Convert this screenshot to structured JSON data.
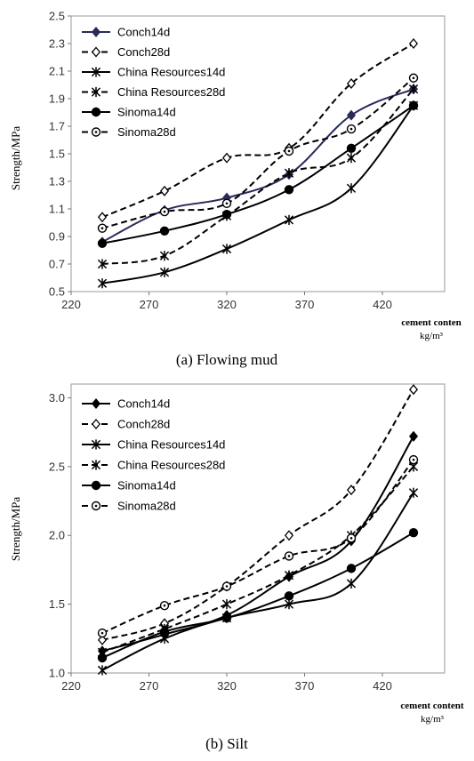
{
  "chart_data": [
    {
      "type": "line",
      "caption": "(a) Flowing mud",
      "ylabel": "Strength/MPa",
      "xlabel": "cement conten",
      "xunit": "kg/m³",
      "xlim": [
        220,
        460
      ],
      "ylim": [
        0.5,
        2.5
      ],
      "xticks": [
        220,
        270,
        320,
        370,
        420
      ],
      "yticks": [
        0.5,
        0.7,
        0.9,
        1.1,
        1.3,
        1.5,
        1.7,
        1.9,
        2.1,
        2.3,
        2.5
      ],
      "ytick_decimals": 1,
      "legend_position": "top-left",
      "x": [
        240,
        280,
        320,
        360,
        400,
        440
      ],
      "series": [
        {
          "name": "Conch14d",
          "dash": "solid",
          "marker": "diamond",
          "color": "#2a2a5a",
          "values": [
            0.86,
            1.09,
            1.18,
            1.35,
            1.78,
            1.97
          ]
        },
        {
          "name": "Conch28d",
          "dash": "dashed",
          "marker": "diamond-open",
          "color": "#000000",
          "values": [
            1.04,
            1.23,
            1.47,
            1.54,
            2.01,
            2.3
          ]
        },
        {
          "name": "China Resources14d",
          "dash": "solid",
          "marker": "star",
          "color": "#000000",
          "values": [
            0.56,
            0.64,
            0.81,
            1.02,
            1.25,
            1.85
          ]
        },
        {
          "name": "China Resources28d",
          "dash": "dashed",
          "marker": "star",
          "color": "#000000",
          "values": [
            0.7,
            0.76,
            1.05,
            1.36,
            1.47,
            1.97
          ]
        },
        {
          "name": "Sinoma14d",
          "dash": "solid",
          "marker": "circle",
          "color": "#000000",
          "values": [
            0.85,
            0.94,
            1.06,
            1.24,
            1.54,
            1.85
          ]
        },
        {
          "name": "Sinoma28d",
          "dash": "dashed",
          "marker": "circle-open",
          "color": "#000000",
          "values": [
            0.96,
            1.08,
            1.14,
            1.52,
            1.68,
            2.05
          ]
        }
      ]
    },
    {
      "type": "line",
      "caption": "(b) Silt",
      "ylabel": "Strength/MPa",
      "xlabel": "cement content",
      "xunit": "kg/m³",
      "xlim": [
        220,
        460
      ],
      "ylim": [
        1.0,
        3.1
      ],
      "xticks": [
        220,
        270,
        320,
        370,
        420
      ],
      "yticks": [
        1.0,
        1.5,
        2.0,
        2.5,
        3.0
      ],
      "ytick_decimals": 1,
      "legend_position": "top-left",
      "x": [
        240,
        280,
        320,
        360,
        400,
        440
      ],
      "series": [
        {
          "name": "Conch14d",
          "dash": "solid",
          "marker": "diamond",
          "color": "#000000",
          "values": [
            1.16,
            1.28,
            1.42,
            1.7,
            1.96,
            2.72
          ]
        },
        {
          "name": "Conch28d",
          "dash": "dashed",
          "marker": "diamond-open",
          "color": "#000000",
          "values": [
            1.24,
            1.36,
            1.63,
            2.0,
            2.33,
            3.06
          ]
        },
        {
          "name": "China Resources14d",
          "dash": "solid",
          "marker": "star",
          "color": "#000000",
          "values": [
            1.02,
            1.25,
            1.4,
            1.5,
            1.65,
            2.31
          ]
        },
        {
          "name": "China Resources28d",
          "dash": "dashed",
          "marker": "star",
          "color": "#000000",
          "values": [
            1.15,
            1.32,
            1.5,
            1.71,
            2.0,
            2.5
          ]
        },
        {
          "name": "Sinoma14d",
          "dash": "solid",
          "marker": "circle",
          "color": "#000000",
          "values": [
            1.11,
            1.3,
            1.4,
            1.56,
            1.76,
            2.02
          ]
        },
        {
          "name": "Sinoma28d",
          "dash": "dashed",
          "marker": "circle-open",
          "color": "#000000",
          "values": [
            1.29,
            1.49,
            1.63,
            1.85,
            1.98,
            2.55
          ]
        }
      ]
    }
  ]
}
